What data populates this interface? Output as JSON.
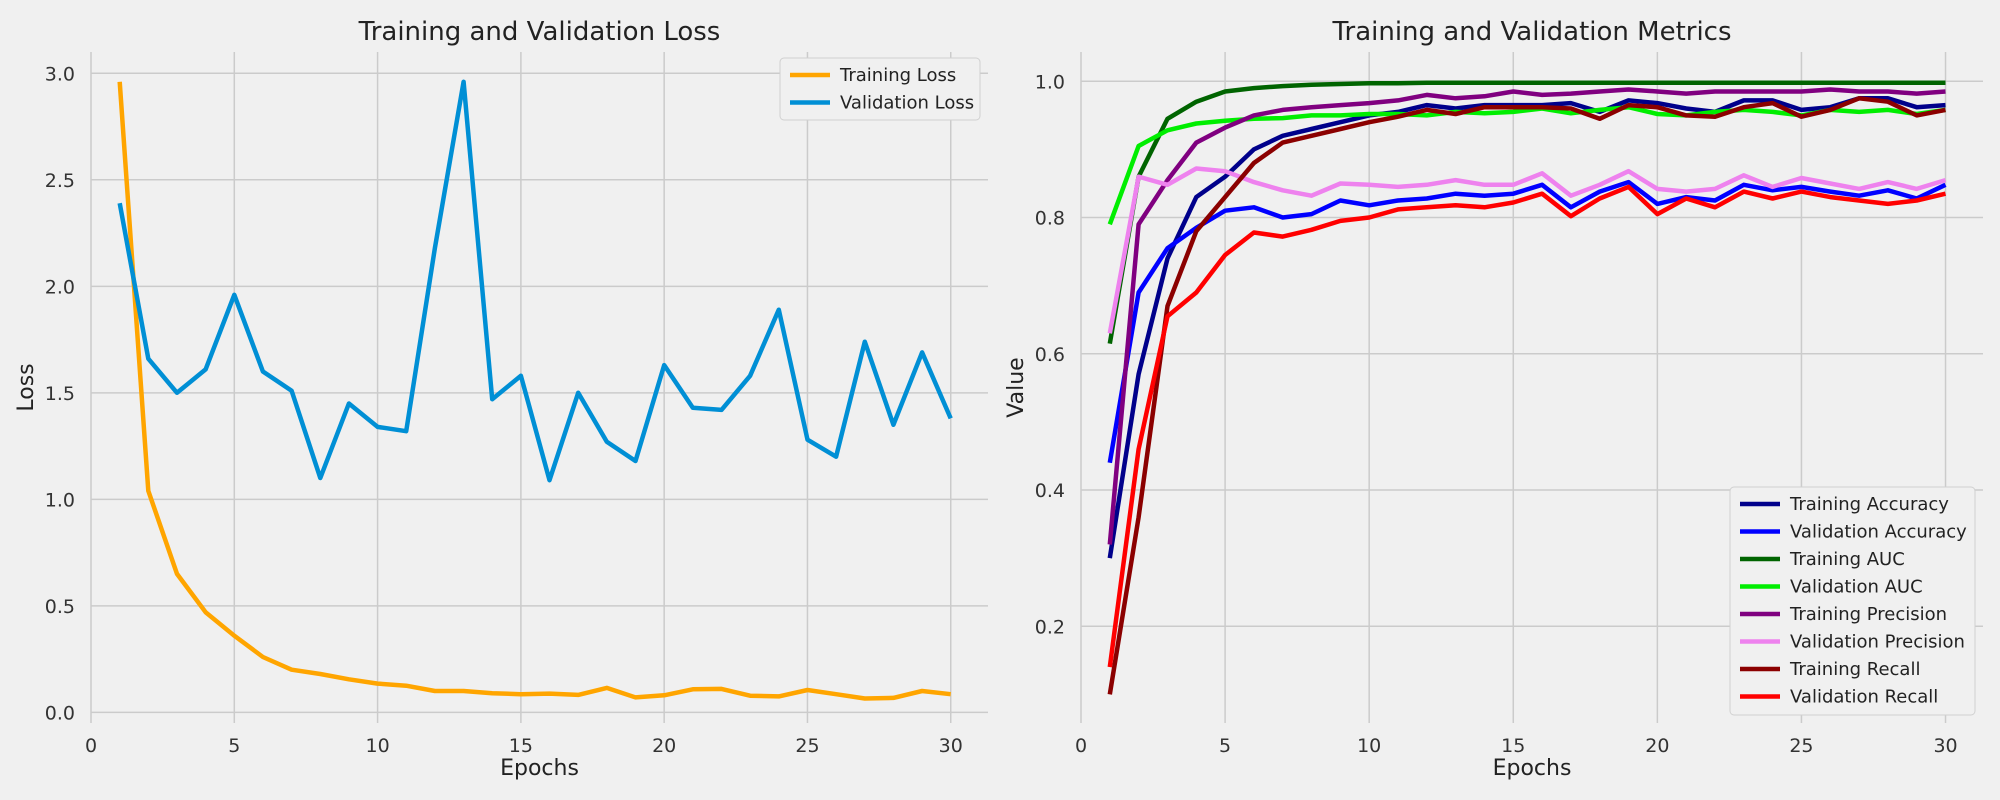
{
  "chart_data": [
    {
      "type": "line",
      "title": "Training and Validation Loss",
      "xlabel": "Epochs",
      "ylabel": "Loss",
      "xlim": [
        0,
        31.3
      ],
      "ylim": [
        -0.05,
        3.1
      ],
      "xticks": [
        0,
        5,
        10,
        15,
        20,
        25,
        30
      ],
      "xtick_labels": [
        "0",
        "5",
        "10",
        "15",
        "20",
        "25",
        "30"
      ],
      "yticks": [
        0.0,
        0.5,
        1.0,
        1.5,
        2.0,
        2.5,
        3.0
      ],
      "ytick_labels": [
        "0.0",
        "0.5",
        "1.0",
        "1.5",
        "2.0",
        "2.5",
        "3.0"
      ],
      "grid": true,
      "legend_position": "top-right",
      "x": [
        1,
        2,
        3,
        4,
        5,
        6,
        7,
        8,
        9,
        10,
        11,
        12,
        13,
        14,
        15,
        16,
        17,
        18,
        19,
        20,
        21,
        22,
        23,
        24,
        25,
        26,
        27,
        28,
        29,
        30
      ],
      "series": [
        {
          "name": "Training Loss",
          "color": "#ffa500",
          "values": [
            2.96,
            1.04,
            0.65,
            0.47,
            0.36,
            0.26,
            0.2,
            0.18,
            0.155,
            0.135,
            0.125,
            0.1,
            0.1,
            0.09,
            0.085,
            0.088,
            0.082,
            0.115,
            0.07,
            0.08,
            0.108,
            0.11,
            0.078,
            0.075,
            0.105,
            0.085,
            0.065,
            0.068,
            0.1,
            0.085
          ]
        },
        {
          "name": "Validation Loss",
          "color": "#008fd5",
          "values": [
            2.39,
            1.66,
            1.5,
            1.61,
            1.96,
            1.6,
            1.51,
            1.1,
            1.45,
            1.34,
            1.32,
            2.18,
            2.96,
            1.47,
            1.58,
            1.09,
            1.5,
            1.27,
            1.18,
            1.63,
            1.43,
            1.42,
            1.58,
            1.89,
            1.28,
            1.2,
            1.74,
            1.35,
            1.69,
            1.38
          ]
        }
      ]
    },
    {
      "type": "line",
      "title": "Training and Validation Metrics",
      "xlabel": "Epochs",
      "ylabel": "Value",
      "xlim": [
        0,
        31.3
      ],
      "ylim": [
        0.058,
        1.043
      ],
      "xticks": [
        0,
        5,
        10,
        15,
        20,
        25,
        30
      ],
      "xtick_labels": [
        "0",
        "5",
        "10",
        "15",
        "20",
        "25",
        "30"
      ],
      "yticks": [
        0.2,
        0.4,
        0.6,
        0.8,
        1.0
      ],
      "ytick_labels": [
        "0.2",
        "0.4",
        "0.6",
        "0.8",
        "1.0"
      ],
      "grid": true,
      "legend_position": "bottom-right",
      "x": [
        1,
        2,
        3,
        4,
        5,
        6,
        7,
        8,
        9,
        10,
        11,
        12,
        13,
        14,
        15,
        16,
        17,
        18,
        19,
        20,
        21,
        22,
        23,
        24,
        25,
        26,
        27,
        28,
        29,
        30
      ],
      "series": [
        {
          "name": "Training Accuracy",
          "color": "#00008b",
          "values": [
            0.3,
            0.57,
            0.74,
            0.83,
            0.86,
            0.9,
            0.92,
            0.93,
            0.94,
            0.95,
            0.955,
            0.965,
            0.96,
            0.965,
            0.965,
            0.965,
            0.968,
            0.955,
            0.972,
            0.968,
            0.96,
            0.955,
            0.972,
            0.972,
            0.958,
            0.962,
            0.975,
            0.975,
            0.962,
            0.965
          ]
        },
        {
          "name": "Validation Accuracy",
          "color": "#0000ff",
          "values": [
            0.44,
            0.69,
            0.755,
            0.785,
            0.81,
            0.815,
            0.8,
            0.805,
            0.825,
            0.818,
            0.825,
            0.828,
            0.835,
            0.832,
            0.835,
            0.848,
            0.815,
            0.838,
            0.852,
            0.82,
            0.83,
            0.825,
            0.848,
            0.84,
            0.845,
            0.838,
            0.832,
            0.84,
            0.828,
            0.848
          ]
        },
        {
          "name": "Training AUC",
          "color": "#006400",
          "values": [
            0.615,
            0.86,
            0.945,
            0.97,
            0.985,
            0.99,
            0.993,
            0.995,
            0.996,
            0.997,
            0.997,
            0.998,
            0.998,
            0.998,
            0.998,
            0.998,
            0.998,
            0.998,
            0.998,
            0.998,
            0.998,
            0.998,
            0.998,
            0.998,
            0.998,
            0.998,
            0.998,
            0.998,
            0.998,
            0.998
          ]
        },
        {
          "name": "Validation AUC",
          "color": "#00ee00",
          "values": [
            0.79,
            0.905,
            0.928,
            0.938,
            0.942,
            0.945,
            0.946,
            0.95,
            0.95,
            0.952,
            0.952,
            0.95,
            0.955,
            0.953,
            0.955,
            0.96,
            0.953,
            0.958,
            0.962,
            0.952,
            0.95,
            0.955,
            0.958,
            0.955,
            0.95,
            0.958,
            0.955,
            0.958,
            0.952,
            0.958
          ]
        },
        {
          "name": "Training Precision",
          "color": "#800080",
          "values": [
            0.32,
            0.79,
            0.855,
            0.91,
            0.932,
            0.95,
            0.958,
            0.962,
            0.965,
            0.968,
            0.972,
            0.98,
            0.975,
            0.978,
            0.985,
            0.98,
            0.982,
            0.985,
            0.988,
            0.985,
            0.982,
            0.985,
            0.985,
            0.985,
            0.985,
            0.988,
            0.985,
            0.985,
            0.982,
            0.985
          ]
        },
        {
          "name": "Validation Precision",
          "color": "#ee82ee",
          "values": [
            0.63,
            0.86,
            0.848,
            0.872,
            0.868,
            0.852,
            0.84,
            0.832,
            0.85,
            0.848,
            0.845,
            0.848,
            0.855,
            0.848,
            0.848,
            0.865,
            0.832,
            0.848,
            0.868,
            0.842,
            0.838,
            0.842,
            0.862,
            0.845,
            0.858,
            0.85,
            0.842,
            0.852,
            0.842,
            0.855
          ]
        },
        {
          "name": "Training Recall",
          "color": "#8b0000",
          "values": [
            0.1,
            0.36,
            0.67,
            0.78,
            0.83,
            0.88,
            0.91,
            0.92,
            0.93,
            0.94,
            0.948,
            0.958,
            0.952,
            0.962,
            0.962,
            0.962,
            0.96,
            0.945,
            0.965,
            0.962,
            0.95,
            0.948,
            0.962,
            0.968,
            0.948,
            0.958,
            0.975,
            0.97,
            0.95,
            0.958
          ]
        },
        {
          "name": "Validation Recall",
          "color": "#ff0000",
          "values": [
            0.14,
            0.46,
            0.655,
            0.69,
            0.745,
            0.778,
            0.772,
            0.782,
            0.795,
            0.8,
            0.812,
            0.815,
            0.818,
            0.815,
            0.822,
            0.835,
            0.802,
            0.828,
            0.845,
            0.805,
            0.828,
            0.815,
            0.838,
            0.828,
            0.838,
            0.83,
            0.825,
            0.82,
            0.825,
            0.835
          ]
        }
      ]
    }
  ]
}
